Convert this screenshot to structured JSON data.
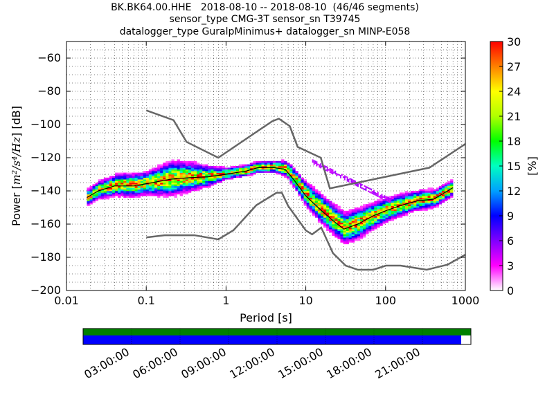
{
  "title": {
    "line1": "BK.BK64.00.HHE   2018-08-10 -- 2018-08-10  (46/46 segments)",
    "line2": "sensor_type CMG-3T sensor_sn T39745",
    "line3": "datalogger_type GuralpMinimus+ datalogger_sn MINP-E058"
  },
  "chart_data": {
    "type": "heatmap",
    "title": "BK.BK64.00.HHE   2018-08-10 -- 2018-08-10  (46/46 segments)",
    "xlabel": "Period [s]",
    "ylabel_prefix": "Power [",
    "ylabel_math": "m²/s⁴/Hz",
    "ylabel_suffix": "] [dB]",
    "xscale": "log",
    "xlim": [
      0.01,
      1000
    ],
    "ylim": [
      -200,
      -50
    ],
    "xticks": [
      0.01,
      0.1,
      1,
      10,
      100,
      1000
    ],
    "xtick_labels": [
      "0.01",
      "0.1",
      "1",
      "10",
      "100",
      "1000"
    ],
    "yticks": [
      -200,
      -180,
      -160,
      -140,
      -120,
      -100,
      -80,
      -60
    ],
    "ytick_labels": [
      "−200",
      "−180",
      "−160",
      "−140",
      "−120",
      "−100",
      "−80",
      "−60"
    ],
    "grid": true,
    "colorbar": {
      "label": "[%]",
      "min": 0,
      "max": 30,
      "ticks": [
        "0",
        "3",
        "6",
        "9",
        "12",
        "15",
        "18",
        "21",
        "24",
        "27",
        "30"
      ],
      "colors": [
        "#ffffff",
        "#ff00ff",
        "#8000ff",
        "#0000ff",
        "#00a0ff",
        "#00ffc0",
        "#00ff00",
        "#b0ff00",
        "#ffff00",
        "#ff8000",
        "#ff0000"
      ]
    },
    "nhnm": [
      [
        0.1,
        -91.5
      ],
      [
        0.22,
        -97.4
      ],
      [
        0.32,
        -110.5
      ],
      [
        0.8,
        -120
      ],
      [
        3.8,
        -98
      ],
      [
        4.6,
        -96.5
      ],
      [
        6.3,
        -101
      ],
      [
        7.9,
        -113.5
      ],
      [
        15.4,
        -120
      ],
      [
        20,
        -138.5
      ],
      [
        354.8,
        -126
      ],
      [
        10000,
        -80
      ]
    ],
    "nlnm": [
      [
        0.1,
        -168
      ],
      [
        0.17,
        -166.7
      ],
      [
        0.4,
        -166.7
      ],
      [
        0.8,
        -169.2
      ],
      [
        1.24,
        -163.7
      ],
      [
        2.4,
        -148.6
      ],
      [
        4.3,
        -141.1
      ],
      [
        5,
        -141.1
      ],
      [
        6,
        -149
      ],
      [
        10,
        -163.8
      ],
      [
        12,
        -166.2
      ],
      [
        15.6,
        -162.1
      ],
      [
        21.9,
        -177.5
      ],
      [
        31.6,
        -185
      ],
      [
        45,
        -187.5
      ],
      [
        70,
        -187.5
      ],
      [
        101,
        -185
      ],
      [
        154,
        -185
      ],
      [
        328,
        -187.5
      ],
      [
        600,
        -184.4
      ],
      [
        10000,
        -151.5
      ]
    ],
    "mode_curve": [
      [
        0.018,
        -144
      ],
      [
        0.025,
        -140
      ],
      [
        0.04,
        -137
      ],
      [
        0.07,
        -137
      ],
      [
        0.12,
        -135
      ],
      [
        0.2,
        -133
      ],
      [
        0.35,
        -132
      ],
      [
        0.6,
        -131.5
      ],
      [
        1,
        -130
      ],
      [
        1.8,
        -128
      ],
      [
        2.5,
        -126
      ],
      [
        4,
        -126
      ],
      [
        5.5,
        -127
      ],
      [
        7,
        -133
      ],
      [
        10,
        -143
      ],
      [
        15,
        -151
      ],
      [
        22,
        -158
      ],
      [
        30,
        -163
      ],
      [
        45,
        -160
      ],
      [
        70,
        -155
      ],
      [
        100,
        -152
      ],
      [
        150,
        -149
      ],
      [
        250,
        -146
      ],
      [
        400,
        -145
      ],
      [
        600,
        -140
      ],
      [
        700,
        -138
      ]
    ],
    "spread_band": [
      [
        0.018,
        4
      ],
      [
        0.05,
        6
      ],
      [
        0.1,
        6
      ],
      [
        0.2,
        9
      ],
      [
        0.4,
        7
      ],
      [
        1,
        3
      ],
      [
        2,
        3
      ],
      [
        4,
        3
      ],
      [
        7,
        5
      ],
      [
        12,
        7
      ],
      [
        20,
        8
      ],
      [
        40,
        8
      ],
      [
        100,
        6
      ],
      [
        300,
        5
      ],
      [
        700,
        4
      ]
    ],
    "coverage_green": 1.0,
    "coverage_blue": 0.975,
    "time_ticks": [
      "03:00:00",
      "06:00:00",
      "09:00:00",
      "12:00:00",
      "15:00:00",
      "18:00:00",
      "21:00:00"
    ]
  }
}
